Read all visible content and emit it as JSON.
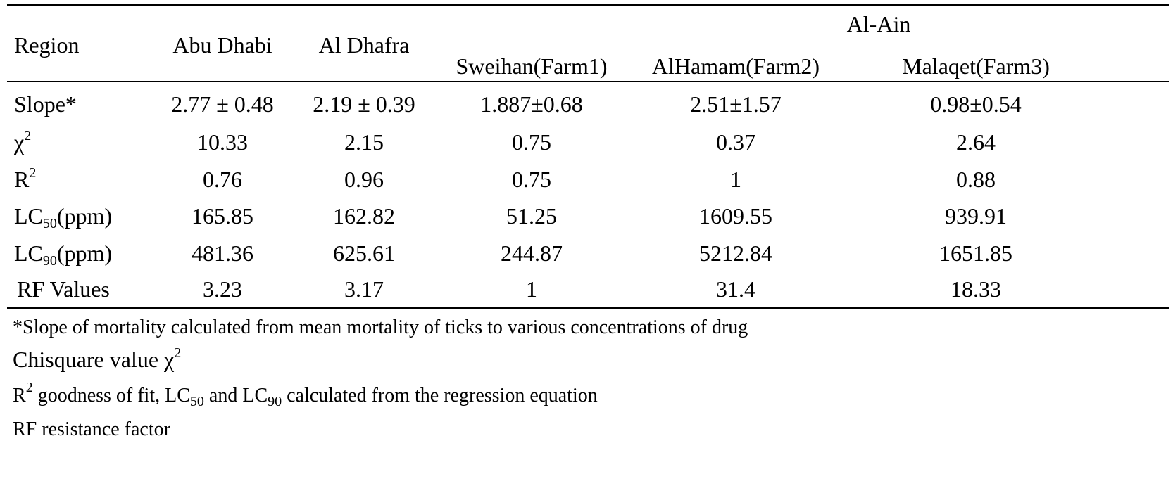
{
  "table": {
    "header": {
      "region_label": "Region",
      "abu_dhabi": "Abu Dhabi",
      "al_dhafra": "Al Dhafra",
      "al_ain_group": "Al-Ain",
      "farm1": "Sweihan(Farm1)",
      "farm2": "AlHamam(Farm2)",
      "farm3": "Malaqet(Farm3)"
    },
    "rows": [
      {
        "label": "Slope*",
        "values": [
          "2.77 ± 0.48",
          "2.19 ± 0.39",
          "1.887±0.68",
          "2.51±1.57",
          "0.98±0.54"
        ]
      },
      {
        "label_base": "χ",
        "label_sup": "2",
        "values": [
          "10.33",
          "2.15",
          "0.75",
          "0.37",
          "2.64"
        ]
      },
      {
        "label_base": "R",
        "label_sup": "2",
        "values": [
          "0.76",
          "0.96",
          "0.75",
          "1",
          "0.88"
        ]
      },
      {
        "label_base": "LC",
        "label_sub": "50",
        "label_tail": "(ppm)",
        "values": [
          "165.85",
          "162.82",
          "51.25",
          "1609.55",
          "939.91"
        ]
      },
      {
        "label_base": "LC",
        "label_sub": "90",
        "label_tail": "(ppm)",
        "values": [
          "481.36",
          "625.61",
          "244.87",
          "5212.84",
          "1651.85"
        ]
      },
      {
        "label": "RF Values",
        "values": [
          "3.23",
          "3.17",
          "1",
          "31.4",
          "18.33"
        ]
      }
    ]
  },
  "footnotes": {
    "slope_note": "*Slope of mortality calculated from mean mortality of ticks to various concentrations of drug",
    "chi_note": "Chisquare value χ",
    "chi_sup": "2",
    "r2_base": "R",
    "r2_sup": "2",
    "r2_text1": " goodness of fit, LC",
    "lc50_sub": "50",
    "r2_text2": " and LC",
    "lc90_sub": "90",
    "r2_text3": " calculated from the regression equation",
    "rf_note": "RF resistance factor"
  }
}
